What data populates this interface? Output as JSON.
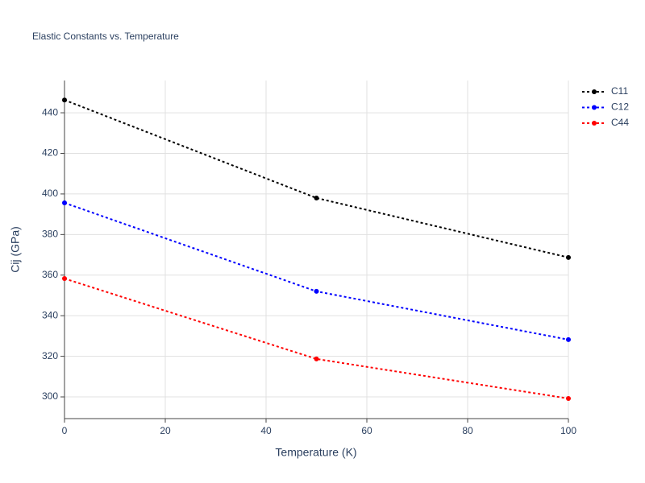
{
  "chart_data": {
    "type": "line",
    "title": "Elastic Constants vs. Temperature",
    "x_label": "Temperature (K)",
    "y_label": "Cij (GPa)",
    "x": [
      0,
      50,
      100
    ],
    "series": [
      {
        "name": "C11",
        "color": "#000000",
        "values": [
          446.3,
          398.0,
          368.7
        ]
      },
      {
        "name": "C12",
        "color": "#0000ff",
        "values": [
          395.6,
          352.0,
          328.2
        ]
      },
      {
        "name": "C44",
        "color": "#ff0000",
        "values": [
          358.3,
          318.7,
          299.2
        ]
      }
    ],
    "xlim": [
      0,
      100
    ],
    "xticks": [
      0,
      20,
      40,
      60,
      80,
      100
    ],
    "ylim": [
      289.3,
      455.9
    ],
    "yticks": [
      300,
      320,
      340,
      360,
      380,
      400,
      420,
      440
    ],
    "grid": true,
    "line_style": "dotted",
    "legend": "top-right"
  }
}
